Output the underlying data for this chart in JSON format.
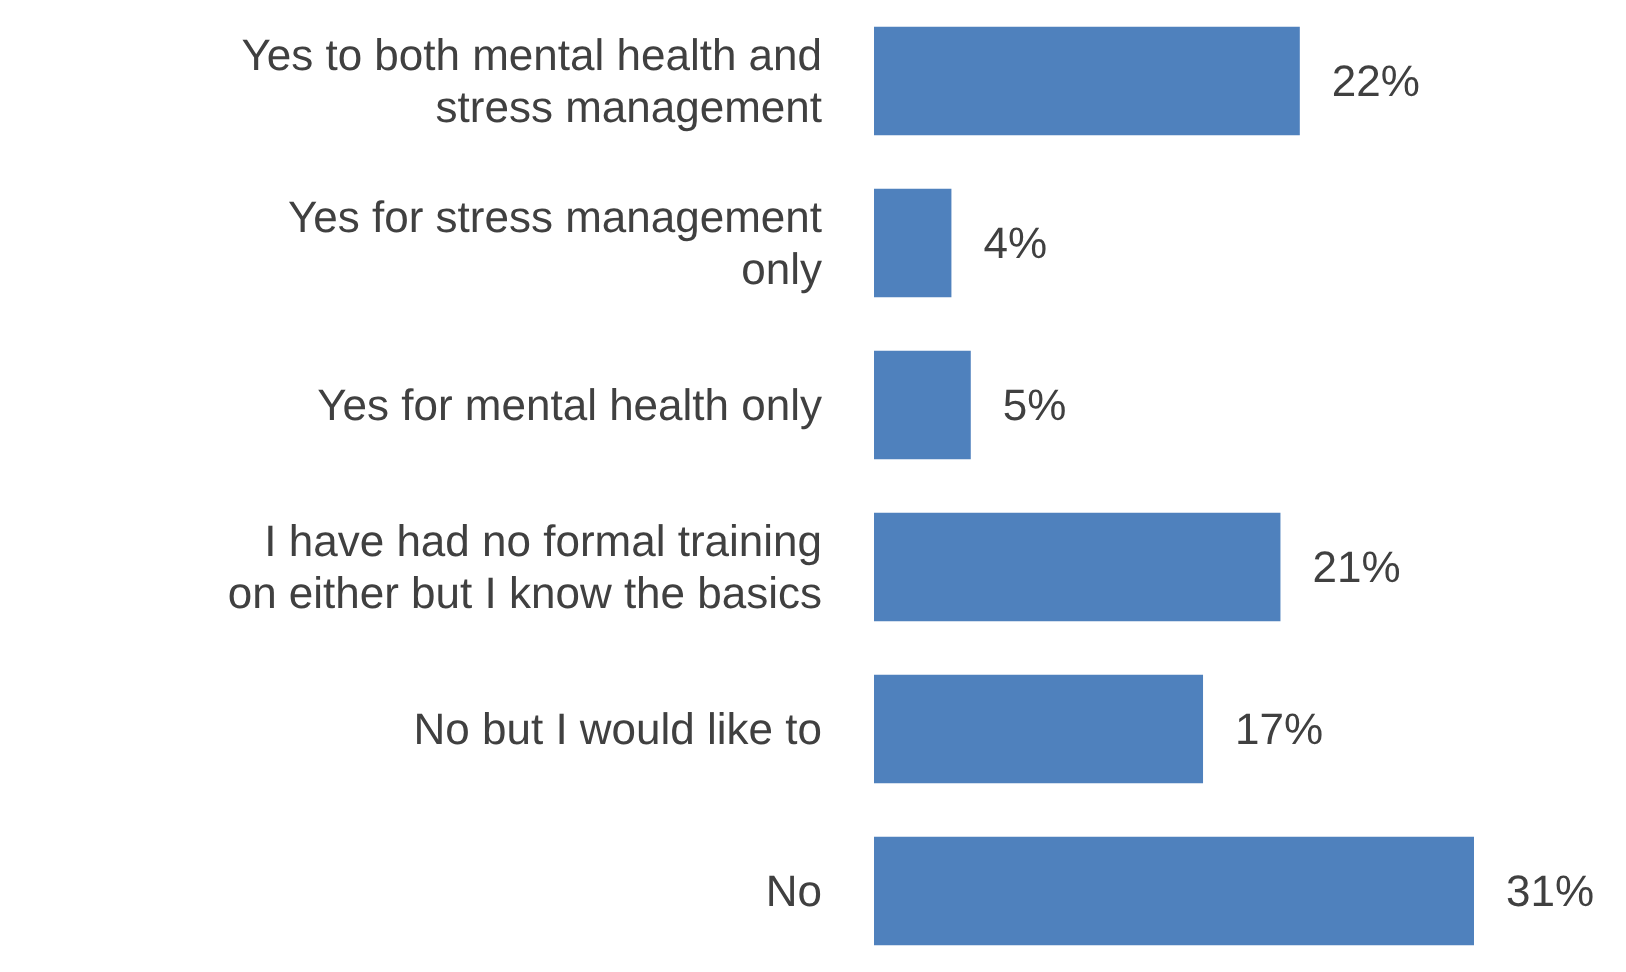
{
  "chart_data": {
    "type": "bar",
    "orientation": "horizontal",
    "categories": [
      "Yes to both mental health and\nstress management",
      "Yes for stress management\nonly",
      "Yes for mental health only",
      "I have had no formal training\non either but I know the basics",
      "No but I would like to",
      "No"
    ],
    "values": [
      22,
      4,
      5,
      21,
      17,
      31
    ],
    "value_labels": [
      "22%",
      "4%",
      "5%",
      "21%",
      "17%",
      "31%"
    ],
    "color": "#4f81bd"
  }
}
